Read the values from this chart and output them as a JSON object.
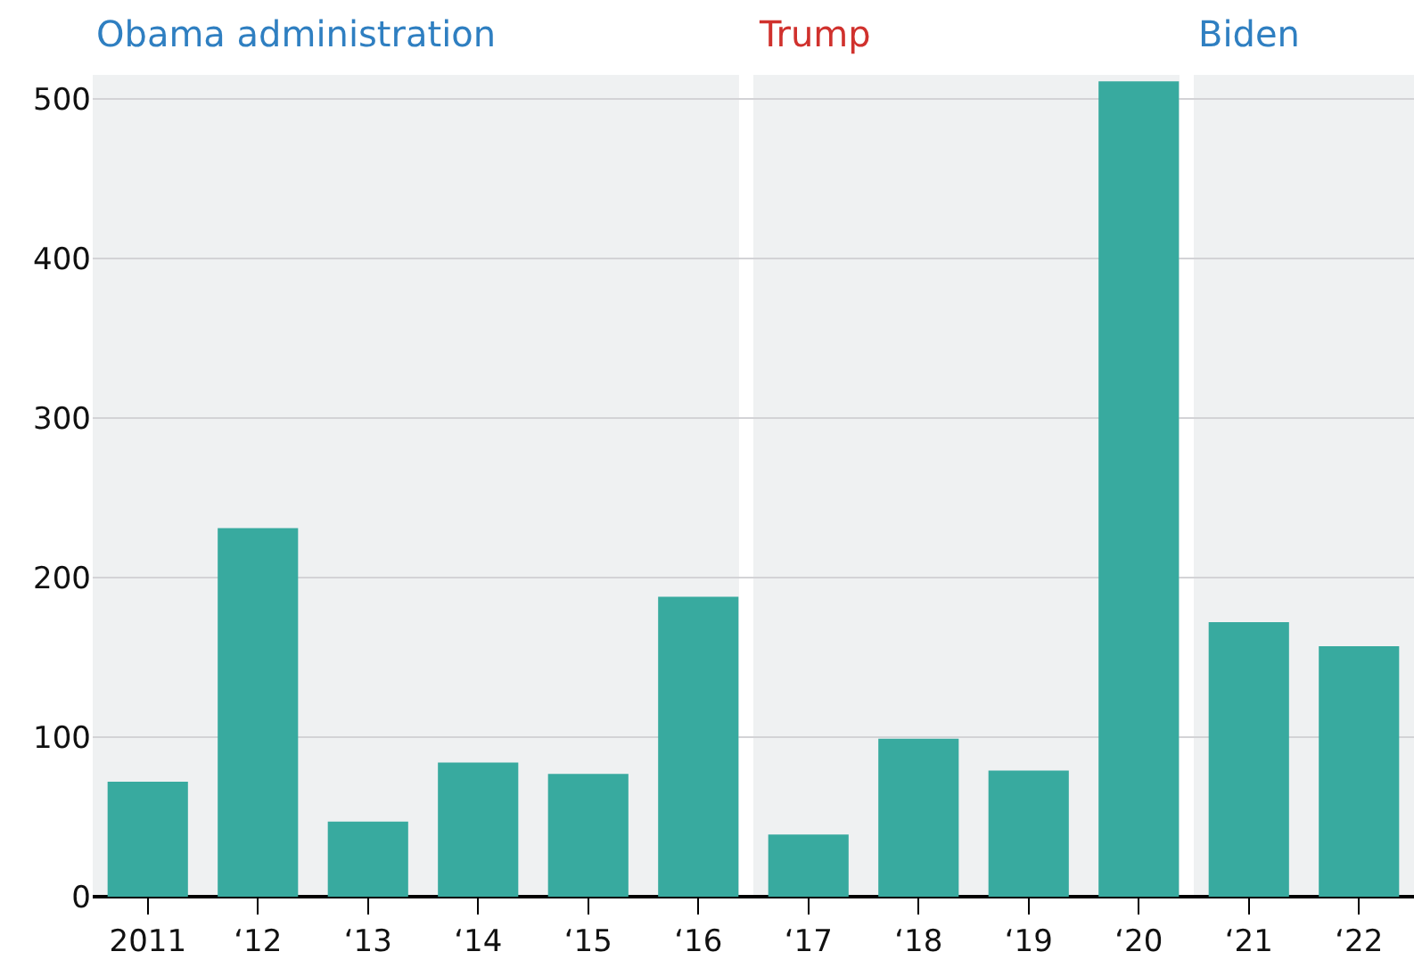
{
  "chart_data": {
    "type": "bar",
    "categories": [
      "2011",
      "‘12",
      "‘13",
      "‘14",
      "‘15",
      "‘16",
      "‘17",
      "‘18",
      "‘19",
      "‘20",
      "‘21",
      "‘22"
    ],
    "values": [
      72,
      231,
      47,
      84,
      77,
      188,
      39,
      99,
      79,
      511,
      172,
      157
    ],
    "color": "#38aa9f",
    "ylim": [
      0,
      515
    ],
    "yticks": [
      0,
      100,
      200,
      300,
      400,
      500
    ],
    "grid": "y",
    "bands": [
      {
        "axis": "x",
        "from": "2011",
        "to": "‘16",
        "label": "Obama administration",
        "color": "#eff1f2"
      },
      {
        "axis": "x",
        "from": "‘17",
        "to": "‘20",
        "label": "Trump",
        "color": "#eff1f2"
      },
      {
        "axis": "x",
        "from": "‘21",
        "to": "‘22",
        "label": "Biden",
        "color": "#eff1f2"
      }
    ]
  }
}
